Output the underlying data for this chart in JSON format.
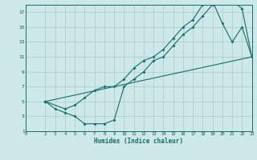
{
  "xlabel": "Humidex (Indice chaleur)",
  "bg_color": "#cce8e8",
  "grid_color": "#aacccc",
  "line_color": "#1a6b6b",
  "tick_color": "#1a5050",
  "xlim": [
    0,
    23
  ],
  "ylim": [
    1,
    18
  ],
  "xticks": [
    0,
    2,
    3,
    4,
    5,
    6,
    7,
    8,
    9,
    10,
    11,
    12,
    13,
    14,
    15,
    16,
    17,
    18,
    19,
    20,
    21,
    22,
    23
  ],
  "yticks": [
    1,
    3,
    5,
    7,
    9,
    11,
    13,
    15,
    17
  ],
  "line1_x": [
    2,
    3,
    4,
    5,
    6,
    7,
    8,
    9,
    10,
    11,
    12,
    13,
    14,
    15,
    16,
    17,
    18,
    19,
    20,
    21,
    22,
    23
  ],
  "line1_y": [
    5,
    4,
    3.5,
    3,
    2,
    2,
    2,
    2.5,
    7,
    8,
    9,
    10.5,
    11,
    12.5,
    14,
    15,
    16.5,
    18,
    18.5,
    18.5,
    17.5,
    11
  ],
  "line2_x": [
    2,
    4,
    5,
    6,
    7,
    8,
    9,
    10,
    11,
    12,
    13,
    14,
    15,
    16,
    17,
    18,
    19,
    20,
    21,
    22,
    23
  ],
  "line2_y": [
    5,
    4,
    4.5,
    5.5,
    6.5,
    7,
    7,
    8,
    9.5,
    10.5,
    11,
    12,
    13.5,
    15,
    16,
    18,
    18.5,
    15.5,
    13,
    15,
    11
  ],
  "line3_x": [
    2,
    23
  ],
  "line3_y": [
    5,
    11
  ]
}
